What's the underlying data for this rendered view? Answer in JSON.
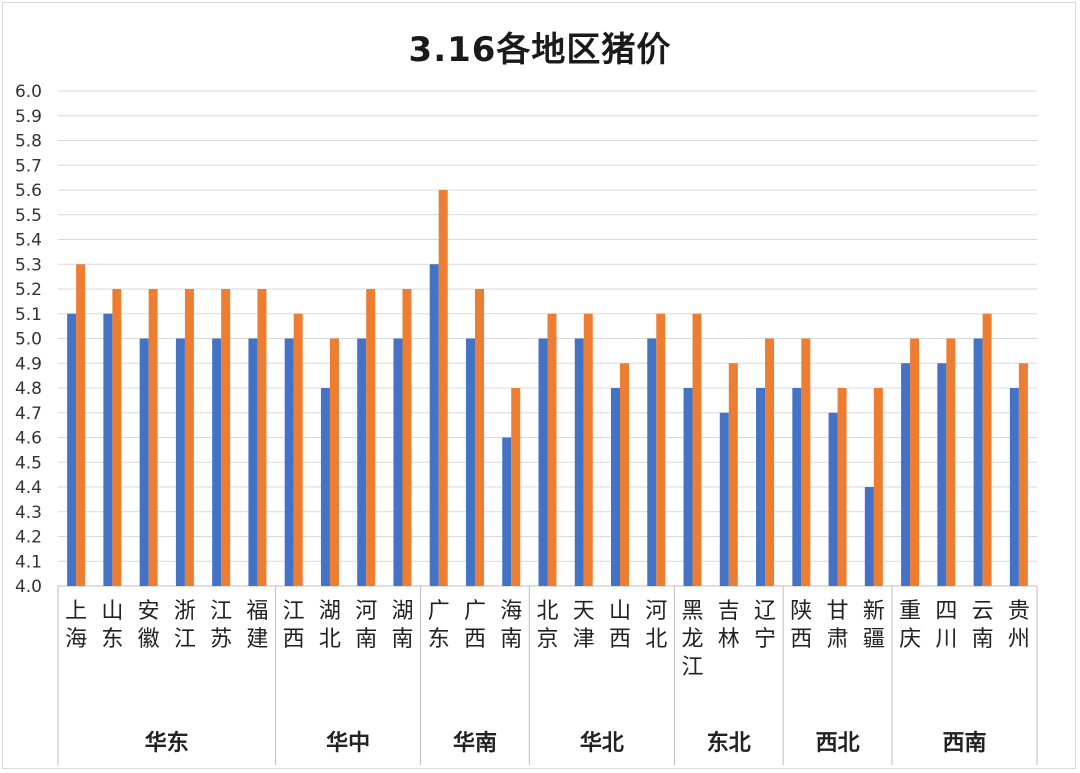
{
  "chart_data": {
    "type": "bar",
    "title": "3.16各地区猪价",
    "xlabel": "",
    "ylabel": "",
    "ylim": [
      4.0,
      6.0
    ],
    "y_ticks": [
      "4.0",
      "4.1",
      "4.2",
      "4.3",
      "4.4",
      "4.5",
      "4.6",
      "4.7",
      "4.8",
      "4.9",
      "5.0",
      "5.1",
      "5.2",
      "5.3",
      "5.4",
      "5.5",
      "5.6",
      "5.7",
      "5.8",
      "5.9",
      "6.0"
    ],
    "grid": true,
    "legend": "none",
    "categories": [
      "上海",
      "山东",
      "安徽",
      "浙江",
      "江苏",
      "福建",
      "江西",
      "湖北",
      "河南",
      "湖南",
      "广东",
      "广西",
      "海南",
      "北京",
      "天津",
      "山西",
      "河北",
      "黑龙江",
      "吉林",
      "辽宁",
      "陕西",
      "甘肃",
      "新疆",
      "重庆",
      "四川",
      "云南",
      "贵州"
    ],
    "groups": [
      {
        "name": "华东",
        "start": 0,
        "count": 6
      },
      {
        "name": "华中",
        "start": 6,
        "count": 4
      },
      {
        "name": "华南",
        "start": 10,
        "count": 3
      },
      {
        "name": "华北",
        "start": 13,
        "count": 4
      },
      {
        "name": "东北",
        "start": 17,
        "count": 3
      },
      {
        "name": "西北",
        "start": 20,
        "count": 3
      },
      {
        "name": "西南",
        "start": 23,
        "count": 4
      }
    ],
    "series": [
      {
        "color": "#4472C4",
        "values": [
          5.1,
          5.1,
          5.0,
          5.0,
          5.0,
          5.0,
          5.0,
          4.8,
          5.0,
          5.0,
          5.3,
          5.0,
          4.6,
          5.0,
          5.0,
          4.8,
          5.0,
          4.8,
          4.7,
          4.8,
          4.8,
          4.7,
          4.4,
          4.9,
          4.9,
          5.0,
          4.8
        ]
      },
      {
        "color": "#ED7D31",
        "values": [
          5.3,
          5.2,
          5.2,
          5.2,
          5.2,
          5.2,
          5.1,
          5.0,
          5.2,
          5.2,
          5.6,
          5.2,
          4.8,
          5.1,
          5.1,
          4.9,
          5.1,
          5.1,
          4.9,
          5.0,
          5.0,
          4.8,
          4.8,
          5.0,
          5.0,
          5.1,
          4.9
        ]
      }
    ]
  }
}
